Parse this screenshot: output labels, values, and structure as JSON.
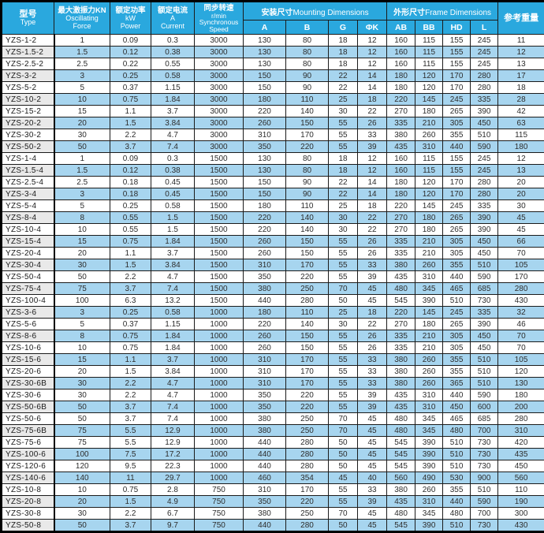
{
  "colors": {
    "header_bg": "#2aa8de",
    "stripe_blue": "#a7d5ef",
    "stripe_gray": "#e9e9e9",
    "border": "#1b1b1b",
    "header_text": "#ffffff"
  },
  "table": {
    "header": {
      "type": {
        "zh": "型号",
        "en": "Type"
      },
      "force": {
        "zh": "最大激振力KN",
        "en1": "Oscillating",
        "en2": "Force"
      },
      "power": {
        "zh": "额定功率",
        "en1": "kW",
        "en2": "Power"
      },
      "current": {
        "zh": "额定电流",
        "en1": "A",
        "en2": "Current"
      },
      "speed": {
        "zh": "同步转速",
        "l2": "r/min",
        "l3": "Synchronous",
        "l4": "Speed"
      },
      "mounting": {
        "zh": "安装尺寸",
        "en": "Mounting Dimensions"
      },
      "frame": {
        "zh": "外形尺寸",
        "en": "Frame Dimensions"
      },
      "weight": {
        "zh": "参考重量"
      }
    },
    "sub_headers": [
      "A",
      "B",
      "G",
      "ΦK",
      "AB",
      "BB",
      "HD",
      "L"
    ],
    "rows": [
      [
        "YZS-1-2",
        "1",
        "0.09",
        "0.3",
        "3000",
        "130",
        "80",
        "18",
        "12",
        "160",
        "115",
        "155",
        "245",
        "11"
      ],
      [
        "YZS-1.5-2",
        "1.5",
        "0.12",
        "0.38",
        "3000",
        "130",
        "80",
        "18",
        "12",
        "160",
        "115",
        "155",
        "245",
        "12"
      ],
      [
        "YZS-2.5-2",
        "2.5",
        "0.22",
        "0.55",
        "3000",
        "130",
        "80",
        "18",
        "12",
        "160",
        "115",
        "155",
        "245",
        "13"
      ],
      [
        "YZS-3-2",
        "3",
        "0.25",
        "0.58",
        "3000",
        "150",
        "90",
        "22",
        "14",
        "180",
        "120",
        "170",
        "280",
        "17"
      ],
      [
        "YZS-5-2",
        "5",
        "0.37",
        "1.15",
        "3000",
        "150",
        "90",
        "22",
        "14",
        "180",
        "120",
        "170",
        "280",
        "18"
      ],
      [
        "YZS-10-2",
        "10",
        "0.75",
        "1.84",
        "3000",
        "180",
        "110",
        "25",
        "18",
        "220",
        "145",
        "245",
        "335",
        "28"
      ],
      [
        "YZS-15-2",
        "15",
        "1.1",
        "3.7",
        "3000",
        "220",
        "140",
        "30",
        "22",
        "270",
        "180",
        "265",
        "390",
        "42"
      ],
      [
        "YZS-20-2",
        "20",
        "1.5",
        "3.84",
        "3000",
        "260",
        "150",
        "55",
        "26",
        "335",
        "210",
        "305",
        "450",
        "63"
      ],
      [
        "YZS-30-2",
        "30",
        "2.2",
        "4.7",
        "3000",
        "310",
        "170",
        "55",
        "33",
        "380",
        "260",
        "355",
        "510",
        "115"
      ],
      [
        "YZS-50-2",
        "50",
        "3.7",
        "7.4",
        "3000",
        "350",
        "220",
        "55",
        "39",
        "435",
        "310",
        "440",
        "590",
        "180"
      ],
      [
        "YZS-1-4",
        "1",
        "0.09",
        "0.3",
        "1500",
        "130",
        "80",
        "18",
        "12",
        "160",
        "115",
        "155",
        "245",
        "12"
      ],
      [
        "YZS-1.5-4",
        "1.5",
        "0.12",
        "0.38",
        "1500",
        "130",
        "80",
        "18",
        "12",
        "160",
        "115",
        "155",
        "245",
        "13"
      ],
      [
        "YZS-2.5-4",
        "2.5",
        "0.18",
        "0.45",
        "1500",
        "150",
        "90",
        "22",
        "14",
        "180",
        "120",
        "170",
        "280",
        "20"
      ],
      [
        "YZS-3-4",
        "3",
        "0.18",
        "0.45",
        "1500",
        "150",
        "90",
        "22",
        "14",
        "180",
        "120",
        "170",
        "280",
        "20"
      ],
      [
        "YZS-5-4",
        "5",
        "0.25",
        "0.58",
        "1500",
        "180",
        "110",
        "25",
        "18",
        "220",
        "145",
        "245",
        "335",
        "30"
      ],
      [
        "YZS-8-4",
        "8",
        "0.55",
        "1.5",
        "1500",
        "220",
        "140",
        "30",
        "22",
        "270",
        "180",
        "265",
        "390",
        "45"
      ],
      [
        "YZS-10-4",
        "10",
        "0.55",
        "1.5",
        "1500",
        "220",
        "140",
        "30",
        "22",
        "270",
        "180",
        "265",
        "390",
        "45"
      ],
      [
        "YZS-15-4",
        "15",
        "0.75",
        "1.84",
        "1500",
        "260",
        "150",
        "55",
        "26",
        "335",
        "210",
        "305",
        "450",
        "66"
      ],
      [
        "YZS-20-4",
        "20",
        "1.1",
        "3.7",
        "1500",
        "260",
        "150",
        "55",
        "26",
        "335",
        "210",
        "305",
        "450",
        "70"
      ],
      [
        "YZS-30-4",
        "30",
        "1.5",
        "3.84",
        "1500",
        "310",
        "170",
        "55",
        "33",
        "380",
        "260",
        "355",
        "510",
        "105"
      ],
      [
        "YZS-50-4",
        "50",
        "2.2",
        "4.7",
        "1500",
        "350",
        "220",
        "55",
        "39",
        "435",
        "310",
        "440",
        "590",
        "170"
      ],
      [
        "YZS-75-4",
        "75",
        "3.7",
        "7.4",
        "1500",
        "380",
        "250",
        "70",
        "45",
        "480",
        "345",
        "465",
        "685",
        "280"
      ],
      [
        "YZS-100-4",
        "100",
        "6.3",
        "13.2",
        "1500",
        "440",
        "280",
        "50",
        "45",
        "545",
        "390",
        "510",
        "730",
        "430"
      ],
      [
        "YZS-3-6",
        "3",
        "0.25",
        "0.58",
        "1000",
        "180",
        "110",
        "25",
        "18",
        "220",
        "145",
        "245",
        "335",
        "32"
      ],
      [
        "YZS-5-6",
        "5",
        "0.37",
        "1.15",
        "1000",
        "220",
        "140",
        "30",
        "22",
        "270",
        "180",
        "265",
        "390",
        "46"
      ],
      [
        "YZS-8-6",
        "8",
        "0.75",
        "1.84",
        "1000",
        "260",
        "150",
        "55",
        "26",
        "335",
        "210",
        "305",
        "450",
        "70"
      ],
      [
        "YZS-10-6",
        "10",
        "0.75",
        "1.84",
        "1000",
        "260",
        "150",
        "55",
        "26",
        "335",
        "210",
        "305",
        "450",
        "70"
      ],
      [
        "YZS-15-6",
        "15",
        "1.1",
        "3.7",
        "1000",
        "310",
        "170",
        "55",
        "33",
        "380",
        "260",
        "355",
        "510",
        "105"
      ],
      [
        "YZS-20-6",
        "20",
        "1.5",
        "3.84",
        "1000",
        "310",
        "170",
        "55",
        "33",
        "380",
        "260",
        "355",
        "510",
        "120"
      ],
      [
        "YZS-30-6B",
        "30",
        "2.2",
        "4.7",
        "1000",
        "310",
        "170",
        "55",
        "33",
        "380",
        "260",
        "365",
        "510",
        "130"
      ],
      [
        "YZS-30-6",
        "30",
        "2.2",
        "4.7",
        "1000",
        "350",
        "220",
        "55",
        "39",
        "435",
        "310",
        "440",
        "590",
        "180"
      ],
      [
        "YZS-50-6B",
        "50",
        "3.7",
        "7.4",
        "1000",
        "350",
        "220",
        "55",
        "39",
        "435",
        "310",
        "450",
        "600",
        "200"
      ],
      [
        "YZS-50-6",
        "50",
        "3.7",
        "7.4",
        "1000",
        "380",
        "250",
        "70",
        "45",
        "480",
        "345",
        "465",
        "685",
        "280"
      ],
      [
        "YZS-75-6B",
        "75",
        "5.5",
        "12.9",
        "1000",
        "380",
        "250",
        "70",
        "45",
        "480",
        "345",
        "480",
        "700",
        "310"
      ],
      [
        "YZS-75-6",
        "75",
        "5.5",
        "12.9",
        "1000",
        "440",
        "280",
        "50",
        "45",
        "545",
        "390",
        "510",
        "730",
        "420"
      ],
      [
        "YZS-100-6",
        "100",
        "7.5",
        "17.2",
        "1000",
        "440",
        "280",
        "50",
        "45",
        "545",
        "390",
        "510",
        "730",
        "435"
      ],
      [
        "YZS-120-6",
        "120",
        "9.5",
        "22.3",
        "1000",
        "440",
        "280",
        "50",
        "45",
        "545",
        "390",
        "510",
        "730",
        "450"
      ],
      [
        "YZS-140-6",
        "140",
        "11",
        "29.7",
        "1000",
        "460",
        "354",
        "45",
        "40",
        "560",
        "490",
        "530",
        "900",
        "560"
      ],
      [
        "YZS-10-8",
        "10",
        "0.75",
        "2.8",
        "750",
        "310",
        "170",
        "55",
        "33",
        "380",
        "260",
        "355",
        "510",
        "110"
      ],
      [
        "YZS-20-8",
        "20",
        "1.5",
        "4.9",
        "750",
        "350",
        "220",
        "55",
        "39",
        "435",
        "310",
        "440",
        "590",
        "190"
      ],
      [
        "YZS-30-8",
        "30",
        "2.2",
        "6.7",
        "750",
        "380",
        "250",
        "70",
        "45",
        "480",
        "345",
        "480",
        "700",
        "300"
      ],
      [
        "YZS-50-8",
        "50",
        "3.7",
        "9.7",
        "750",
        "440",
        "280",
        "50",
        "45",
        "545",
        "390",
        "510",
        "730",
        "430"
      ]
    ]
  }
}
